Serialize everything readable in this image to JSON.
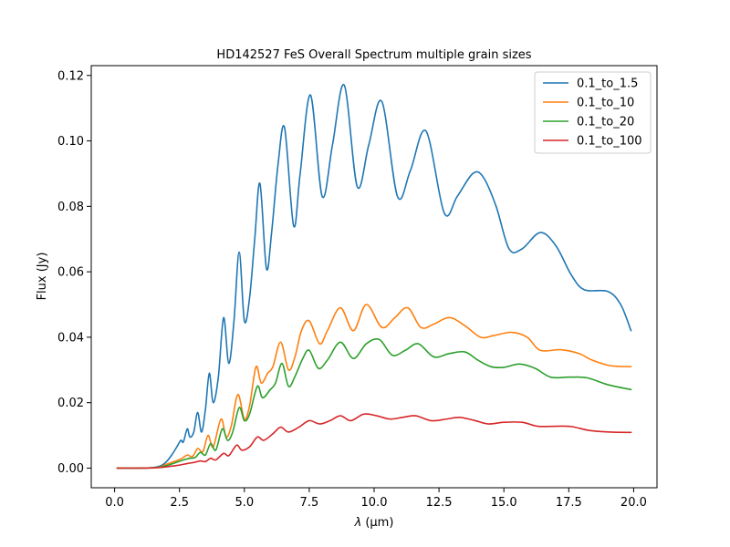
{
  "chart_data": {
    "type": "line",
    "title": "HD142527 FeS Overall Spectrum multiple grain sizes",
    "xlabel_symbol": "λ",
    "xlabel_unit": "(μm)",
    "ylabel": "Flux (Jy)",
    "xlim": [
      -0.9,
      20.9
    ],
    "ylim": [
      -0.006,
      0.123
    ],
    "xticks": [
      0.0,
      2.5,
      5.0,
      7.5,
      10.0,
      12.5,
      15.0,
      17.5,
      20.0
    ],
    "xtick_labels": [
      "0.0",
      "2.5",
      "5.0",
      "7.5",
      "10.0",
      "12.5",
      "15.0",
      "17.5",
      "20.0"
    ],
    "yticks": [
      0.0,
      0.02,
      0.04,
      0.06,
      0.08,
      0.1,
      0.12
    ],
    "ytick_labels": [
      "0.00",
      "0.02",
      "0.04",
      "0.06",
      "0.08",
      "0.10",
      "0.12"
    ],
    "grid": false,
    "legend_position": "top-right",
    "series": [
      {
        "name": "0.1_to_1.5",
        "color": "#1f77b4",
        "points": [
          [
            0.1,
            0.0
          ],
          [
            1.0,
            0.0
          ],
          [
            1.5,
            0.0002
          ],
          [
            1.8,
            0.0008
          ],
          [
            2.0,
            0.002
          ],
          [
            2.2,
            0.004
          ],
          [
            2.4,
            0.0065
          ],
          [
            2.55,
            0.0085
          ],
          [
            2.65,
            0.008
          ],
          [
            2.8,
            0.012
          ],
          [
            2.9,
            0.0095
          ],
          [
            3.05,
            0.011
          ],
          [
            3.2,
            0.017
          ],
          [
            3.35,
            0.011
          ],
          [
            3.5,
            0.018
          ],
          [
            3.65,
            0.029
          ],
          [
            3.8,
            0.02
          ],
          [
            4.0,
            0.028
          ],
          [
            4.2,
            0.046
          ],
          [
            4.4,
            0.032
          ],
          [
            4.6,
            0.045
          ],
          [
            4.8,
            0.066
          ],
          [
            5.0,
            0.045
          ],
          [
            5.2,
            0.052
          ],
          [
            5.4,
            0.07
          ],
          [
            5.6,
            0.087
          ],
          [
            5.85,
            0.061
          ],
          [
            6.05,
            0.072
          ],
          [
            6.3,
            0.093
          ],
          [
            6.55,
            0.104
          ],
          [
            6.9,
            0.074
          ],
          [
            7.15,
            0.09
          ],
          [
            7.55,
            0.114
          ],
          [
            8.0,
            0.083
          ],
          [
            8.4,
            0.099
          ],
          [
            8.85,
            0.117
          ],
          [
            9.35,
            0.086
          ],
          [
            9.8,
            0.099
          ],
          [
            10.3,
            0.112
          ],
          [
            10.9,
            0.083
          ],
          [
            11.4,
            0.091
          ],
          [
            12.0,
            0.103
          ],
          [
            12.7,
            0.078
          ],
          [
            13.2,
            0.083
          ],
          [
            13.8,
            0.09
          ],
          [
            14.2,
            0.089
          ],
          [
            14.7,
            0.08
          ],
          [
            15.2,
            0.067
          ],
          [
            15.7,
            0.067
          ],
          [
            16.4,
            0.072
          ],
          [
            17.0,
            0.068
          ],
          [
            17.6,
            0.059
          ],
          [
            18.1,
            0.0545
          ],
          [
            19.0,
            0.054
          ],
          [
            19.5,
            0.05
          ],
          [
            19.9,
            0.042
          ]
        ]
      },
      {
        "name": "0.1_to_10",
        "color": "#ff7f0e",
        "points": [
          [
            0.1,
            0.0
          ],
          [
            1.0,
            0.0
          ],
          [
            1.5,
            0.0001
          ],
          [
            1.8,
            0.0005
          ],
          [
            2.0,
            0.0012
          ],
          [
            2.3,
            0.002
          ],
          [
            2.6,
            0.003
          ],
          [
            2.8,
            0.004
          ],
          [
            3.0,
            0.0035
          ],
          [
            3.2,
            0.006
          ],
          [
            3.4,
            0.005
          ],
          [
            3.6,
            0.01
          ],
          [
            3.8,
            0.0065
          ],
          [
            4.1,
            0.015
          ],
          [
            4.3,
            0.0095
          ],
          [
            4.5,
            0.013
          ],
          [
            4.75,
            0.0225
          ],
          [
            5.0,
            0.015
          ],
          [
            5.2,
            0.019
          ],
          [
            5.45,
            0.031
          ],
          [
            5.65,
            0.026
          ],
          [
            5.9,
            0.029
          ],
          [
            6.1,
            0.031
          ],
          [
            6.4,
            0.0385
          ],
          [
            6.7,
            0.03
          ],
          [
            6.95,
            0.034
          ],
          [
            7.2,
            0.042
          ],
          [
            7.5,
            0.045
          ],
          [
            7.9,
            0.038
          ],
          [
            8.2,
            0.042
          ],
          [
            8.7,
            0.049
          ],
          [
            9.2,
            0.042
          ],
          [
            9.7,
            0.05
          ],
          [
            10.3,
            0.043
          ],
          [
            10.8,
            0.046
          ],
          [
            11.3,
            0.049
          ],
          [
            11.8,
            0.043
          ],
          [
            12.3,
            0.044
          ],
          [
            12.9,
            0.046
          ],
          [
            13.5,
            0.0435
          ],
          [
            14.1,
            0.04
          ],
          [
            14.6,
            0.0405
          ],
          [
            15.3,
            0.0415
          ],
          [
            15.9,
            0.04
          ],
          [
            16.4,
            0.036
          ],
          [
            17.2,
            0.0362
          ],
          [
            17.9,
            0.035
          ],
          [
            18.4,
            0.033
          ],
          [
            19.1,
            0.0313
          ],
          [
            19.9,
            0.031
          ]
        ]
      },
      {
        "name": "0.1_to_20",
        "color": "#2ca02c",
        "points": [
          [
            0.1,
            0.0
          ],
          [
            1.0,
            0.0
          ],
          [
            1.5,
            0.0001
          ],
          [
            1.8,
            0.0004
          ],
          [
            2.1,
            0.001
          ],
          [
            2.4,
            0.0018
          ],
          [
            2.7,
            0.0026
          ],
          [
            2.9,
            0.003
          ],
          [
            3.1,
            0.0032
          ],
          [
            3.3,
            0.0048
          ],
          [
            3.5,
            0.004
          ],
          [
            3.7,
            0.0075
          ],
          [
            3.9,
            0.0055
          ],
          [
            4.15,
            0.012
          ],
          [
            4.35,
            0.0085
          ],
          [
            4.55,
            0.011
          ],
          [
            4.8,
            0.0185
          ],
          [
            5.0,
            0.0145
          ],
          [
            5.2,
            0.0165
          ],
          [
            5.5,
            0.025
          ],
          [
            5.7,
            0.0215
          ],
          [
            6.0,
            0.024
          ],
          [
            6.2,
            0.026
          ],
          [
            6.45,
            0.032
          ],
          [
            6.7,
            0.025
          ],
          [
            6.95,
            0.028
          ],
          [
            7.25,
            0.0335
          ],
          [
            7.5,
            0.036
          ],
          [
            7.85,
            0.0305
          ],
          [
            8.2,
            0.033
          ],
          [
            8.7,
            0.0385
          ],
          [
            9.2,
            0.0335
          ],
          [
            9.7,
            0.038
          ],
          [
            10.2,
            0.0393
          ],
          [
            10.7,
            0.0345
          ],
          [
            11.2,
            0.036
          ],
          [
            11.7,
            0.038
          ],
          [
            12.3,
            0.034
          ],
          [
            12.9,
            0.035
          ],
          [
            13.5,
            0.0355
          ],
          [
            14.0,
            0.033
          ],
          [
            14.5,
            0.031
          ],
          [
            15.0,
            0.0308
          ],
          [
            15.6,
            0.0318
          ],
          [
            16.2,
            0.0305
          ],
          [
            16.8,
            0.0278
          ],
          [
            17.5,
            0.0278
          ],
          [
            18.2,
            0.0276
          ],
          [
            19.0,
            0.0255
          ],
          [
            19.9,
            0.024
          ]
        ]
      },
      {
        "name": "0.1_to_100",
        "color": "#d62728",
        "points": [
          [
            0.1,
            0.0
          ],
          [
            1.0,
            0.0
          ],
          [
            1.6,
            0.0001
          ],
          [
            2.0,
            0.0004
          ],
          [
            2.4,
            0.0008
          ],
          [
            2.8,
            0.0014
          ],
          [
            3.1,
            0.0018
          ],
          [
            3.3,
            0.0022
          ],
          [
            3.5,
            0.002
          ],
          [
            3.7,
            0.003
          ],
          [
            3.9,
            0.0025
          ],
          [
            4.2,
            0.0045
          ],
          [
            4.4,
            0.0038
          ],
          [
            4.7,
            0.007
          ],
          [
            4.9,
            0.0055
          ],
          [
            5.2,
            0.0065
          ],
          [
            5.5,
            0.0095
          ],
          [
            5.75,
            0.0085
          ],
          [
            6.1,
            0.0105
          ],
          [
            6.4,
            0.0125
          ],
          [
            6.7,
            0.011
          ],
          [
            7.1,
            0.0125
          ],
          [
            7.5,
            0.0145
          ],
          [
            7.9,
            0.0135
          ],
          [
            8.3,
            0.0145
          ],
          [
            8.7,
            0.016
          ],
          [
            9.1,
            0.0145
          ],
          [
            9.6,
            0.0165
          ],
          [
            10.1,
            0.016
          ],
          [
            10.6,
            0.015
          ],
          [
            11.1,
            0.0155
          ],
          [
            11.6,
            0.016
          ],
          [
            12.2,
            0.0145
          ],
          [
            12.8,
            0.015
          ],
          [
            13.3,
            0.0155
          ],
          [
            13.9,
            0.0145
          ],
          [
            14.4,
            0.0135
          ],
          [
            15.0,
            0.014
          ],
          [
            15.7,
            0.014
          ],
          [
            16.3,
            0.0128
          ],
          [
            17.0,
            0.0128
          ],
          [
            17.6,
            0.0127
          ],
          [
            18.3,
            0.0115
          ],
          [
            19.1,
            0.011
          ],
          [
            19.9,
            0.0109
          ]
        ]
      }
    ]
  }
}
